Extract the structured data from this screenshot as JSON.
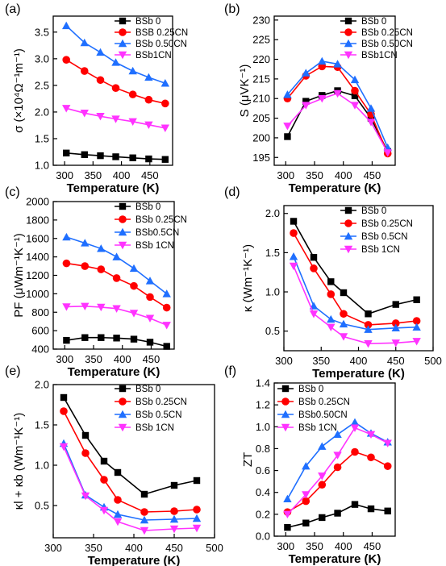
{
  "chart_data": [
    {
      "type": "line",
      "panel": "(a)",
      "xlabel": "Temperature (K)",
      "ylabel": "σ (×10⁴Ω⁻¹m⁻¹)",
      "xlim": [
        280,
        490
      ],
      "ylim": [
        1.0,
        3.8
      ],
      "xticks": [
        300,
        350,
        400,
        450
      ],
      "yticks": [
        1.0,
        1.5,
        2.0,
        2.5,
        3.0,
        3.5
      ],
      "legend": "top-right",
      "series": [
        {
          "name": "BSb 0",
          "color": "#000000",
          "marker": "square",
          "x": [
            303,
            335,
            363,
            390,
            420,
            448,
            477
          ],
          "y": [
            1.23,
            1.2,
            1.18,
            1.16,
            1.14,
            1.12,
            1.11
          ]
        },
        {
          "name": "BSB 0.25CN",
          "color": "#ff0000",
          "marker": "circle",
          "x": [
            303,
            335,
            363,
            390,
            420,
            448,
            477
          ],
          "y": [
            2.98,
            2.77,
            2.6,
            2.45,
            2.33,
            2.23,
            2.16
          ]
        },
        {
          "name": "BSb 0.50CN",
          "color": "#1f6fff",
          "marker": "triangle-up",
          "x": [
            303,
            335,
            363,
            390,
            420,
            448,
            477
          ],
          "y": [
            3.62,
            3.3,
            3.12,
            2.93,
            2.77,
            2.65,
            2.54
          ]
        },
        {
          "name": "BSb1CN",
          "color": "#ff33ff",
          "marker": "triangle-down",
          "x": [
            303,
            335,
            363,
            390,
            420,
            448,
            477
          ],
          "y": [
            2.07,
            1.98,
            1.92,
            1.87,
            1.82,
            1.76,
            1.7
          ]
        }
      ]
    },
    {
      "type": "line",
      "panel": "(b)",
      "xlabel": "Temperature (K)",
      "ylabel": "S (μVK⁻¹)",
      "xlim": [
        280,
        490
      ],
      "ylim": [
        193,
        231
      ],
      "xticks": [
        300,
        350,
        400,
        450
      ],
      "yticks": [
        195,
        200,
        205,
        210,
        215,
        220,
        225,
        230
      ],
      "legend": "top-right",
      "series": [
        {
          "name": "BSb 0",
          "color": "#000000",
          "marker": "square",
          "x": [
            303,
            335,
            363,
            390,
            420,
            448,
            477
          ],
          "y": [
            200.3,
            209.3,
            210.8,
            212.0,
            210.7,
            205.0,
            196.5
          ]
        },
        {
          "name": "BSb 0.25CN",
          "color": "#ff0000",
          "marker": "circle",
          "x": [
            303,
            335,
            363,
            390,
            420,
            448,
            477
          ],
          "y": [
            210.0,
            215.8,
            218.2,
            218.0,
            212.0,
            206.0,
            196.0
          ]
        },
        {
          "name": "BSb 0.50CN",
          "color": "#1f6fff",
          "marker": "triangle-up",
          "x": [
            303,
            335,
            363,
            390,
            420,
            448,
            477
          ],
          "y": [
            211.0,
            216.5,
            219.5,
            218.8,
            214.8,
            207.5,
            197.5
          ]
        },
        {
          "name": "BSb1CN",
          "color": "#ff33ff",
          "marker": "triangle-down",
          "x": [
            303,
            335,
            363,
            390,
            420,
            448,
            477
          ],
          "y": [
            203.0,
            208.3,
            210.0,
            211.3,
            208.3,
            204.0,
            196.2
          ]
        }
      ]
    },
    {
      "type": "line",
      "panel": "(c)",
      "xlabel": "Temperature (K)",
      "ylabel": "PF (μWm⁻¹K⁻¹)",
      "xlim": [
        280,
        490
      ],
      "ylim": [
        400,
        2000
      ],
      "xticks": [
        300,
        350,
        400,
        450
      ],
      "yticks": [
        400,
        600,
        800,
        1000,
        1200,
        1400,
        1600,
        1800,
        2000
      ],
      "legend": "top-right",
      "series": [
        {
          "name": "BSb 0",
          "color": "#000000",
          "marker": "square",
          "x": [
            303,
            335,
            363,
            390,
            420,
            448,
            477
          ],
          "y": [
            495,
            525,
            525,
            520,
            508,
            475,
            430
          ]
        },
        {
          "name": "BSb 0.25CN",
          "color": "#ff0000",
          "marker": "circle",
          "x": [
            303,
            335,
            363,
            390,
            420,
            448,
            477
          ],
          "y": [
            1330,
            1300,
            1265,
            1170,
            1085,
            965,
            850
          ]
        },
        {
          "name": "BSb0.5CN",
          "color": "#1f6fff",
          "marker": "triangle-up",
          "x": [
            303,
            335,
            363,
            390,
            420,
            448,
            477
          ],
          "y": [
            1615,
            1550,
            1490,
            1400,
            1275,
            1140,
            1000
          ]
        },
        {
          "name": "BSb 1CN",
          "color": "#ff33ff",
          "marker": "triangle-down",
          "x": [
            303,
            335,
            363,
            390,
            420,
            448,
            477
          ],
          "y": [
            860,
            865,
            855,
            840,
            790,
            735,
            660
          ]
        }
      ]
    },
    {
      "type": "line",
      "panel": "(d)",
      "xlabel": "Temperature (K)",
      "ylabel": "κ (Wm⁻¹K⁻¹)",
      "xlim": [
        300,
        500
      ],
      "ylim": [
        0.25,
        2.1
      ],
      "xticks": [
        300,
        350,
        400,
        450,
        500
      ],
      "yticks": [
        0.5,
        1.0,
        1.5,
        2.0
      ],
      "legend": "top-right",
      "series": [
        {
          "name": "BSb 0",
          "color": "#000000",
          "marker": "square",
          "x": [
            313,
            340,
            363,
            380,
            413,
            450,
            478
          ],
          "y": [
            1.9,
            1.44,
            1.13,
            0.99,
            0.72,
            0.84,
            0.9
          ]
        },
        {
          "name": "BSb 0.25CN",
          "color": "#ff0000",
          "marker": "circle",
          "x": [
            313,
            340,
            363,
            380,
            413,
            450,
            478
          ],
          "y": [
            1.75,
            1.3,
            0.97,
            0.72,
            0.58,
            0.6,
            0.63
          ]
        },
        {
          "name": "BSb 0.5CN",
          "color": "#1f6fff",
          "marker": "triangle-up",
          "x": [
            313,
            340,
            363,
            380,
            413,
            450,
            478
          ],
          "y": [
            1.45,
            0.82,
            0.65,
            0.59,
            0.52,
            0.54,
            0.55
          ]
        },
        {
          "name": "BSb 1CN",
          "color": "#ff33ff",
          "marker": "triangle-down",
          "x": [
            313,
            340,
            363,
            380,
            413,
            450,
            478
          ],
          "y": [
            1.33,
            0.72,
            0.55,
            0.43,
            0.34,
            0.35,
            0.37
          ]
        }
      ]
    },
    {
      "type": "line",
      "panel": "(e)",
      "xlabel": "Temperature (K)",
      "ylabel": "κl + κb (Wm⁻¹K⁻¹)",
      "xlim": [
        300,
        500
      ],
      "ylim": [
        0.1,
        2.0
      ],
      "xticks": [
        300,
        350,
        400,
        450,
        500
      ],
      "yticks": [
        0.5,
        1.0,
        1.5,
        2.0
      ],
      "legend": "top-right",
      "series": [
        {
          "name": "BSb 0",
          "color": "#000000",
          "marker": "square",
          "x": [
            313,
            340,
            363,
            380,
            413,
            450,
            478
          ],
          "y": [
            1.84,
            1.37,
            1.05,
            0.91,
            0.64,
            0.75,
            0.81
          ]
        },
        {
          "name": "BSb 0.25CN",
          "color": "#ff0000",
          "marker": "circle",
          "x": [
            313,
            340,
            363,
            380,
            413,
            450,
            478
          ],
          "y": [
            1.67,
            1.15,
            0.82,
            0.57,
            0.42,
            0.43,
            0.45
          ]
        },
        {
          "name": "BSb 0.5CN",
          "color": "#1f6fff",
          "marker": "triangle-up",
          "x": [
            313,
            340,
            363,
            380,
            413,
            450,
            478
          ],
          "y": [
            1.27,
            0.63,
            0.48,
            0.39,
            0.32,
            0.33,
            0.34
          ]
        },
        {
          "name": "BSb 1CN",
          "color": "#ff33ff",
          "marker": "triangle-down",
          "x": [
            313,
            340,
            363,
            380,
            413,
            450,
            478
          ],
          "y": [
            1.23,
            0.62,
            0.44,
            0.3,
            0.19,
            0.21,
            0.22
          ]
        }
      ]
    },
    {
      "type": "line",
      "panel": "(f)",
      "xlabel": "Temperature (K)",
      "ylabel": "ZT",
      "xlim": [
        280,
        490
      ],
      "ylim": [
        0.0,
        1.4
      ],
      "xticks": [
        300,
        350,
        400,
        450
      ],
      "yticks": [
        0.0,
        0.2,
        0.4,
        0.6,
        0.8,
        1.0,
        1.2,
        1.4
      ],
      "legend": "top-left",
      "series": [
        {
          "name": "BSb 0",
          "color": "#000000",
          "marker": "square",
          "x": [
            303,
            335,
            363,
            390,
            420,
            448,
            477
          ],
          "y": [
            0.08,
            0.12,
            0.17,
            0.21,
            0.29,
            0.25,
            0.23
          ]
        },
        {
          "name": "BSb 0.25CN",
          "color": "#ff0000",
          "marker": "circle",
          "x": [
            303,
            335,
            363,
            390,
            420,
            448,
            477
          ],
          "y": [
            0.22,
            0.32,
            0.47,
            0.63,
            0.77,
            0.72,
            0.64
          ]
        },
        {
          "name": "BSb0.50CN",
          "color": "#1f6fff",
          "marker": "triangle-up",
          "x": [
            303,
            335,
            363,
            390,
            420,
            448,
            477
          ],
          "y": [
            0.34,
            0.64,
            0.82,
            0.93,
            1.04,
            0.94,
            0.86
          ]
        },
        {
          "name": "BSb 1CN",
          "color": "#ff33ff",
          "marker": "triangle-down",
          "x": [
            303,
            335,
            363,
            390,
            420,
            448,
            477
          ],
          "y": [
            0.2,
            0.38,
            0.55,
            0.74,
            0.99,
            0.93,
            0.85
          ]
        }
      ]
    }
  ]
}
